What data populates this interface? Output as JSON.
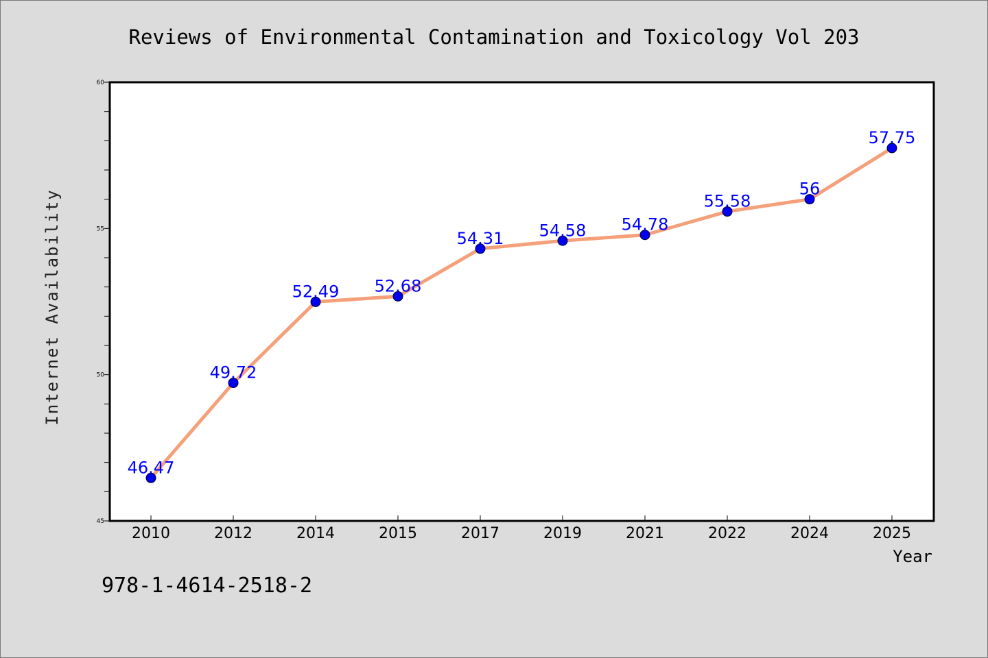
{
  "chart_data": {
    "type": "line",
    "title": "Reviews of Environmental Contamination and Toxicology Vol 203",
    "xlabel": "Year",
    "ylabel": "Internet Availability",
    "categories": [
      "2010",
      "2012",
      "2014",
      "2015",
      "2017",
      "2019",
      "2021",
      "2022",
      "2024",
      "2025"
    ],
    "series": [
      {
        "values": [
          46.47,
          49.72,
          52.49,
          52.68,
          54.31,
          54.58,
          54.78,
          55.58,
          56,
          57.75
        ],
        "data_labels": [
          "46.47",
          "49.72",
          "52.49",
          "52.68",
          "54.31",
          "54.58",
          "54.78",
          "55.58",
          "56",
          "57.75"
        ]
      }
    ],
    "ylim": [
      45,
      60
    ],
    "yticks": [
      "45",
      "50",
      "55",
      "60"
    ],
    "grid": false,
    "colors": {
      "line": "#f4a07a",
      "marker": "#0000ee",
      "label": "#0000ff"
    }
  },
  "footer_text": "978-1-4614-2518-2"
}
